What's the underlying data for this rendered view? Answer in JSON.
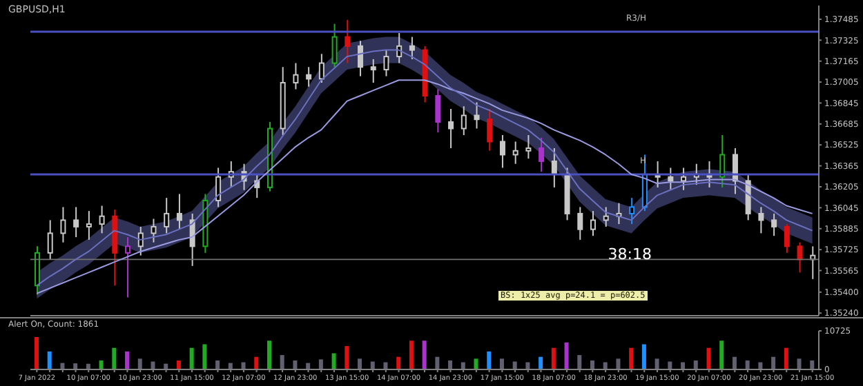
{
  "chart_data": [
    {
      "type": "candlestick",
      "title": "GBPUSD,H1",
      "ohlc": [
        [
          1.3545,
          1.3575,
          1.3538,
          1.357
        ],
        [
          1.357,
          1.3595,
          1.3565,
          1.3585
        ],
        [
          1.3585,
          1.3605,
          1.3578,
          1.3595
        ],
        [
          1.3595,
          1.3605,
          1.3582,
          1.359
        ],
        [
          1.359,
          1.3602,
          1.358,
          1.3592
        ],
        [
          1.3592,
          1.3606,
          1.3585,
          1.3598
        ],
        [
          1.3598,
          1.3603,
          1.3545,
          1.357
        ],
        [
          1.357,
          1.3582,
          1.3536,
          1.3575
        ],
        [
          1.3575,
          1.359,
          1.3568,
          1.3585
        ],
        [
          1.3585,
          1.3596,
          1.3578,
          1.359
        ],
        [
          1.359,
          1.3612,
          1.3585,
          1.36
        ],
        [
          1.36,
          1.3615,
          1.3588,
          1.3595
        ],
        [
          1.3595,
          1.36,
          1.356,
          1.3575
        ],
        [
          1.3575,
          1.3615,
          1.357,
          1.361
        ],
        [
          1.361,
          1.3635,
          1.3605,
          1.3628
        ],
        [
          1.3628,
          1.364,
          1.362,
          1.3632
        ],
        [
          1.3632,
          1.3638,
          1.3618,
          1.3625
        ],
        [
          1.3625,
          1.363,
          1.3612,
          1.362
        ],
        [
          1.362,
          1.367,
          1.3617,
          1.3665
        ],
        [
          1.3665,
          1.3712,
          1.366,
          1.37
        ],
        [
          1.37,
          1.3715,
          1.3695,
          1.3706
        ],
        [
          1.3706,
          1.3712,
          1.3697,
          1.3703
        ],
        [
          1.3703,
          1.3722,
          1.37,
          1.3715
        ],
        [
          1.3715,
          1.3745,
          1.3712,
          1.3735
        ],
        [
          1.3735,
          1.3748,
          1.3715,
          1.3728
        ],
        [
          1.3728,
          1.3732,
          1.3705,
          1.3712
        ],
        [
          1.3712,
          1.3718,
          1.37,
          1.371
        ],
        [
          1.371,
          1.3725,
          1.3705,
          1.372
        ],
        [
          1.372,
          1.3738,
          1.3715,
          1.3728
        ],
        [
          1.3728,
          1.3735,
          1.3718,
          1.3725
        ],
        [
          1.3725,
          1.3728,
          1.3685,
          1.369
        ],
        [
          1.369,
          1.3695,
          1.3662,
          1.367
        ],
        [
          1.367,
          1.368,
          1.365,
          1.3665
        ],
        [
          1.3665,
          1.3682,
          1.366,
          1.3675
        ],
        [
          1.3675,
          1.3685,
          1.3665,
          1.3672
        ],
        [
          1.3672,
          1.368,
          1.3648,
          1.3655
        ],
        [
          1.3655,
          1.366,
          1.3635,
          1.3645
        ],
        [
          1.3645,
          1.3655,
          1.3638,
          1.3648
        ],
        [
          1.3648,
          1.366,
          1.3642,
          1.365
        ],
        [
          1.365,
          1.3658,
          1.3632,
          1.364
        ],
        [
          1.364,
          1.365,
          1.362,
          1.363
        ],
        [
          1.363,
          1.3635,
          1.3595,
          1.36
        ],
        [
          1.36,
          1.3605,
          1.358,
          1.3588
        ],
        [
          1.3588,
          1.3602,
          1.3583,
          1.3595
        ],
        [
          1.3595,
          1.3605,
          1.359,
          1.3598
        ],
        [
          1.3598,
          1.3608,
          1.3592,
          1.36
        ],
        [
          1.36,
          1.3612,
          1.3592,
          1.3605
        ],
        [
          1.3605,
          1.3645,
          1.3602,
          1.363
        ],
        [
          1.363,
          1.364,
          1.362,
          1.3628
        ],
        [
          1.3628,
          1.3635,
          1.3618,
          1.3625
        ],
        [
          1.3625,
          1.3635,
          1.3618,
          1.3628
        ],
        [
          1.3628,
          1.3638,
          1.3622,
          1.363
        ],
        [
          1.363,
          1.364,
          1.362,
          1.3628
        ],
        [
          1.3628,
          1.366,
          1.362,
          1.3645
        ],
        [
          1.3645,
          1.365,
          1.3615,
          1.3625
        ],
        [
          1.3625,
          1.363,
          1.3595,
          1.36
        ],
        [
          1.36,
          1.3605,
          1.3585,
          1.3595
        ],
        [
          1.3595,
          1.36,
          1.3583,
          1.359
        ],
        [
          1.359,
          1.3592,
          1.357,
          1.3575
        ],
        [
          1.3575,
          1.3578,
          1.3555,
          1.3565
        ],
        [
          1.3565,
          1.3575,
          1.355,
          1.3568
        ]
      ],
      "colors": [
        "#22aa22",
        "#c8c8c8",
        "#c8c8c8",
        "#c8c8c8",
        "#c8c8c8",
        "#c8c8c8",
        "#dd1111",
        "#aa33cc",
        "#c8c8c8",
        "#c8c8c8",
        "#c8c8c8",
        "#c8c8c8",
        "#c8c8c8",
        "#22aa22",
        "#c8c8c8",
        "#c8c8c8",
        "#c8c8c8",
        "#c8c8c8",
        "#22aa22",
        "#c8c8c8",
        "#c8c8c8",
        "#c8c8c8",
        "#c8c8c8",
        "#22aa22",
        "#dd1111",
        "#c8c8c8",
        "#c8c8c8",
        "#c8c8c8",
        "#c8c8c8",
        "#c8c8c8",
        "#dd1111",
        "#aa33cc",
        "#c8c8c8",
        "#c8c8c8",
        "#c8c8c8",
        "#dd1111",
        "#c8c8c8",
        "#c8c8c8",
        "#c8c8c8",
        "#aa33cc",
        "#c8c8c8",
        "#c8c8c8",
        "#c8c8c8",
        "#c8c8c8",
        "#c8c8c8",
        "#c8c8c8",
        "#1e90ff",
        "#1e90ff",
        "#c8c8c8",
        "#c8c8c8",
        "#c8c8c8",
        "#c8c8c8",
        "#c8c8c8",
        "#22aa22",
        "#c8c8c8",
        "#c8c8c8",
        "#c8c8c8",
        "#c8c8c8",
        "#dd1111",
        "#dd1111",
        "#c8c8c8"
      ],
      "series": [
        {
          "type": "line",
          "color": "#9a9ae0",
          "values": [
            1.3539,
            1.3543,
            1.3547,
            1.3551,
            1.3555,
            1.3559,
            1.3563,
            1.3567,
            1.3571,
            1.3574,
            1.3577,
            1.358,
            1.3582,
            1.359,
            1.3598,
            1.3606,
            1.3614,
            1.3624,
            1.3633,
            1.3642,
            1.3651,
            1.3658,
            1.3664,
            1.3675,
            1.3686,
            1.369,
            1.3694,
            1.3698,
            1.3702,
            1.3702,
            1.3702,
            1.3699,
            1.3695,
            1.3692,
            1.3688,
            1.3684,
            1.3679,
            1.3676,
            1.3673,
            1.3669,
            1.3664,
            1.366,
            1.3656,
            1.3651,
            1.3645,
            1.3638,
            1.363,
            1.3627,
            1.3623,
            1.3624,
            1.3624,
            1.3625,
            1.3626,
            1.3626,
            1.3626,
            1.3622,
            1.3617,
            1.3612,
            1.3606,
            1.3603,
            1.36
          ]
        },
        {
          "type": "line",
          "color": "#6a6fc0",
          "values": [
            1.3545,
            1.3552,
            1.3558,
            1.3565,
            1.3571,
            1.3579,
            1.3587,
            1.3584,
            1.358,
            1.3582,
            1.3584,
            1.3588,
            1.3592,
            1.3603,
            1.3614,
            1.362,
            1.3626,
            1.3636,
            1.3645,
            1.3659,
            1.3672,
            1.3687,
            1.3702,
            1.3711,
            1.372,
            1.3722,
            1.3724,
            1.3725,
            1.3725,
            1.372,
            1.3714,
            1.3705,
            1.3696,
            1.369,
            1.3683,
            1.3679,
            1.3674,
            1.3669,
            1.3664,
            1.3656,
            1.3647,
            1.3633,
            1.3619,
            1.361,
            1.3601,
            1.3598,
            1.3595,
            1.3605,
            1.3614,
            1.3618,
            1.3622,
            1.3623,
            1.3624,
            1.3623,
            1.3622,
            1.3615,
            1.3608,
            1.3602,
            1.3595,
            1.3591,
            1.3587
          ],
          "lower": [
            1.3535,
            1.3542,
            1.3548,
            1.3555,
            1.3561,
            1.3569,
            1.3577,
            1.3574,
            1.357,
            1.3572,
            1.3574,
            1.3578,
            1.3582,
            1.3593,
            1.3604,
            1.361,
            1.3616,
            1.3626,
            1.3635,
            1.3649,
            1.3662,
            1.3677,
            1.3692,
            1.3701,
            1.371,
            1.3712,
            1.3714,
            1.3715,
            1.3715,
            1.371,
            1.3704,
            1.3695,
            1.3686,
            1.368,
            1.3673,
            1.3669,
            1.3664,
            1.3659,
            1.3654,
            1.3646,
            1.3637,
            1.3623,
            1.3609,
            1.36,
            1.3591,
            1.3588,
            1.3585,
            1.3595,
            1.3604,
            1.3608,
            1.3612,
            1.3613,
            1.3614,
            1.3613,
            1.3612,
            1.3605,
            1.3598,
            1.3592,
            1.3585,
            1.3581,
            1.3577
          ],
          "upper": [
            1.3555,
            1.3562,
            1.3568,
            1.3575,
            1.3581,
            1.3589,
            1.3597,
            1.3594,
            1.359,
            1.3592,
            1.3594,
            1.3598,
            1.3602,
            1.3613,
            1.3624,
            1.363,
            1.3636,
            1.3646,
            1.3655,
            1.3669,
            1.3682,
            1.3697,
            1.3712,
            1.3721,
            1.373,
            1.3732,
            1.3734,
            1.3735,
            1.3735,
            1.373,
            1.3724,
            1.3715,
            1.3706,
            1.37,
            1.3693,
            1.3689,
            1.3684,
            1.3679,
            1.3674,
            1.3666,
            1.3657,
            1.3643,
            1.3629,
            1.362,
            1.3611,
            1.3608,
            1.3605,
            1.3615,
            1.3624,
            1.3628,
            1.3632,
            1.3633,
            1.3634,
            1.3633,
            1.3632,
            1.3625,
            1.3618,
            1.3612,
            1.3605,
            1.3601,
            1.3597
          ]
        }
      ],
      "ylim": [
        1.3522,
        1.3759
      ],
      "yticks": [
        {
          "value": 1.3524,
          "label": "1.35240"
        },
        {
          "value": 1.354,
          "label": "1.35400"
        },
        1.35565,
        1.35725,
        1.35885,
        1.36045,
        1.36205,
        1.36365,
        1.36525,
        1.36685,
        1.36845,
        {
          "value": 1.37005,
          "label": "1.37005"
        },
        1.37165,
        1.37325,
        1.37485
      ],
      "tick_labels": "y",
      "ref_lines": [
        {
          "axis": "y",
          "value": 1.3739,
          "label": "R3/H",
          "color": "#4a50c0"
        },
        {
          "axis": "y",
          "value": 1.363,
          "label": "H",
          "color": "#4a50c0"
        },
        {
          "axis": "y",
          "value": 1.3565,
          "label": null,
          "color": "#707070"
        }
      ],
      "annotations": [
        "38:18",
        "BS: 1x25 avg p=24.1 = p=602.5"
      ],
      "grid": false,
      "legend": false
    },
    {
      "type": "bar",
      "title": "Alert On, Count: 1861",
      "categories": [
        "7 Jan 2022",
        null,
        null,
        null,
        "10 Jan 07:00",
        null,
        null,
        null,
        "10 Jan 23:00",
        null,
        null,
        null,
        "11 Jan 15:00",
        null,
        null,
        null,
        "12 Jan 07:00",
        null,
        null,
        null,
        "12 Jan 23:00",
        null,
        null,
        null,
        "13 Jan 15:00",
        null,
        null,
        null,
        "14 Jan 07:00",
        null,
        null,
        null,
        "14 Jan 23:00",
        null,
        null,
        null,
        "17 Jan 15:00",
        null,
        null,
        null,
        "18 Jan 07:00",
        null,
        null,
        null,
        "18 Jan 23:00",
        null,
        null,
        null,
        "19 Jan 15:00",
        null,
        null,
        null,
        "20 Jan 07:00",
        null,
        null,
        null,
        "20 Jan 23:00",
        null,
        null,
        null,
        "21 Jan 15:00"
      ],
      "values": [
        9000,
        5000,
        1800,
        1700,
        1600,
        2500,
        6000,
        5000,
        3000,
        2200,
        1600,
        2500,
        6000,
        7000,
        2500,
        1800,
        2000,
        3500,
        8000,
        4000,
        2500,
        1800,
        2800,
        4500,
        6500,
        3000,
        2200,
        2000,
        3500,
        8000,
        8000,
        3500,
        2500,
        2000,
        3000,
        5000,
        3000,
        2200,
        2000,
        3500,
        6000,
        7500,
        4000,
        2500,
        2000,
        3000,
        6000,
        7000,
        3000,
        2200,
        2000,
        2500,
        6000,
        8000,
        3500,
        2500,
        2000,
        3500,
        6000,
        3000,
        2500
      ],
      "colors": [
        "#dd1111",
        "#1e90ff",
        "#606070",
        "#606070",
        "#606070",
        "#22aa22",
        "#22aa22",
        "#aa33cc",
        "#606070",
        "#606070",
        "#606070",
        "#dd1111",
        "#22aa22",
        "#22aa22",
        "#606070",
        "#606070",
        "#606070",
        "#dd1111",
        "#22aa22",
        "#606070",
        "#606070",
        "#606070",
        "#606070",
        "#22aa22",
        "#dd1111",
        "#606070",
        "#606070",
        "#606070",
        "#dd1111",
        "#dd1111",
        "#aa33cc",
        "#606070",
        "#606070",
        "#606070",
        "#22aa22",
        "#1e90ff",
        "#606070",
        "#606070",
        "#606070",
        "#1e90ff",
        "#dd1111",
        "#aa33cc",
        "#606070",
        "#606070",
        "#606070",
        "#606070",
        "#dd1111",
        "#1e90ff",
        "#606070",
        "#606070",
        "#606070",
        "#606070",
        "#dd1111",
        "#22aa22",
        "#606070",
        "#606070",
        "#606070",
        "#606070",
        "#dd1111",
        "#606070",
        "#606070"
      ],
      "ylim": [
        0,
        10725
      ],
      "yticks": [
        0,
        10725
      ],
      "grid": false,
      "legend": false
    }
  ]
}
